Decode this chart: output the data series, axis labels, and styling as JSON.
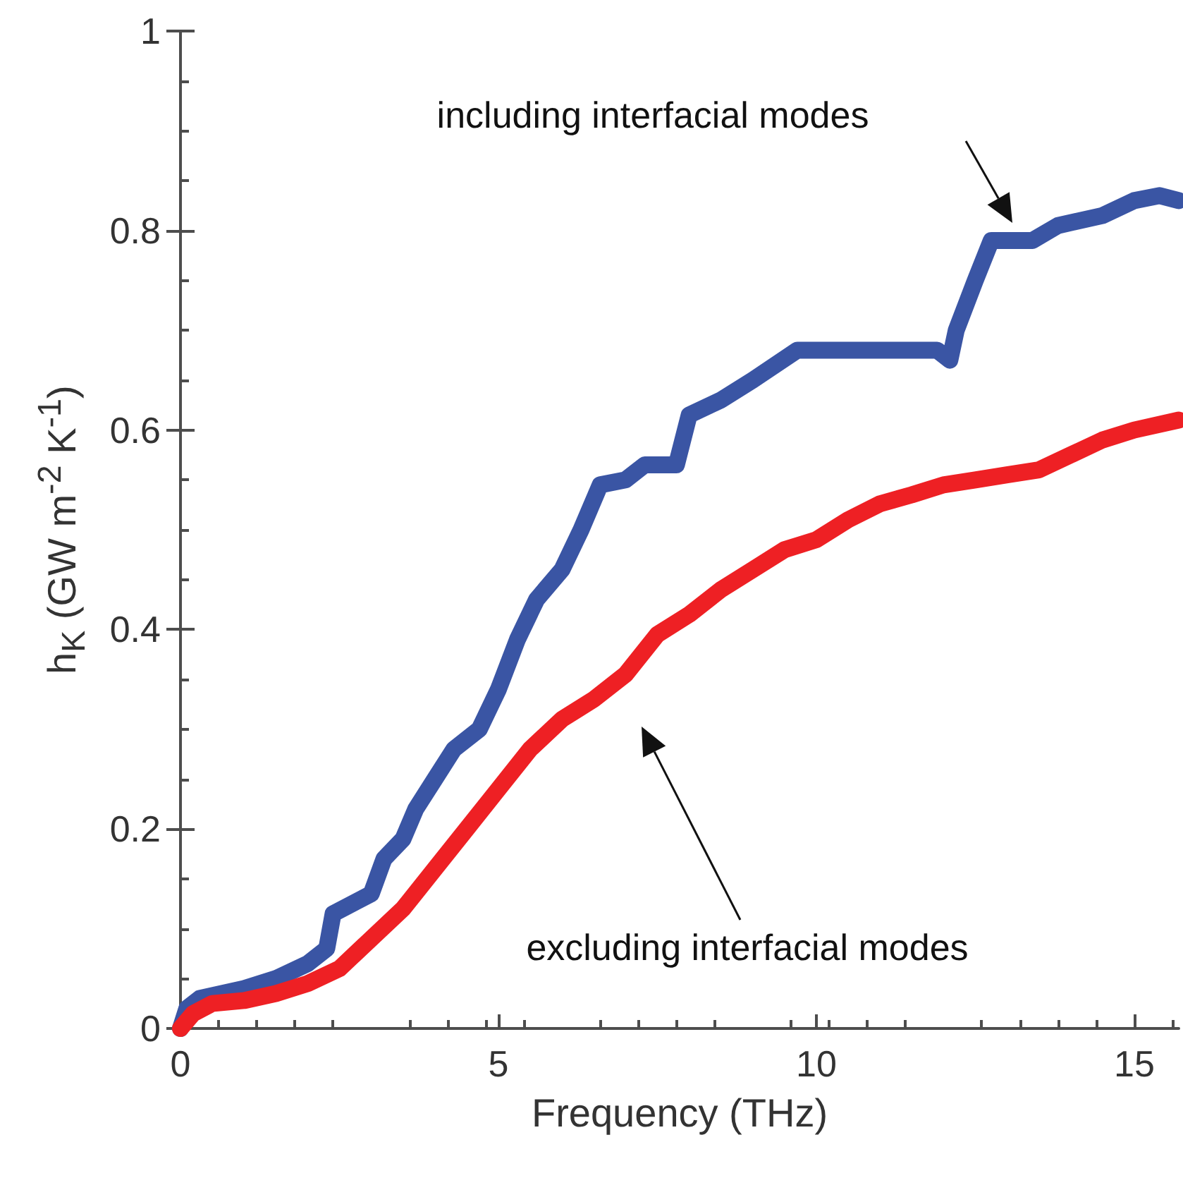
{
  "chart_data": {
    "type": "line",
    "xlabel": "Frequency (THz)",
    "ylabel": "h$_{K}$ (GW m$^{-2}$ K$^{-1}$)",
    "xlim": [
      0,
      15.7
    ],
    "xticks": [
      0,
      5,
      10,
      15
    ],
    "ylim": [
      0,
      1
    ],
    "yticks": [
      0,
      0.2,
      0.4,
      0.6,
      0.8,
      1
    ],
    "grid": false,
    "marker": "none",
    "line_style": "solid",
    "series": [
      {
        "color": "#3a55a4",
        "x": [
          0,
          0.1,
          0.3,
          1,
          1.5,
          2,
          2.3,
          2.4,
          3,
          3.2,
          3.5,
          3.7,
          4,
          4.3,
          4.7,
          5,
          5.3,
          5.6,
          6,
          6.3,
          6.6,
          7,
          7.3,
          7.8,
          8,
          8.5,
          9,
          9.7,
          10,
          11,
          11.9,
          12.1,
          12.2,
          12.5,
          12.75,
          13.4,
          13.8,
          14.5,
          15,
          15.4,
          15.7
        ],
        "values": [
          0,
          0.02,
          0.03,
          0.04,
          0.05,
          0.065,
          0.08,
          0.115,
          0.135,
          0.17,
          0.19,
          0.22,
          0.25,
          0.28,
          0.3,
          0.34,
          0.39,
          0.43,
          0.46,
          0.5,
          0.545,
          0.55,
          0.565,
          0.565,
          0.615,
          0.63,
          0.65,
          0.68,
          0.68,
          0.68,
          0.68,
          0.67,
          0.7,
          0.75,
          0.79,
          0.79,
          0.805,
          0.815,
          0.83,
          0.835,
          0.83
        ]
      },
      {
        "color": "#ee2024",
        "x": [
          0,
          0.2,
          0.5,
          1,
          1.5,
          2,
          2.5,
          3,
          3.5,
          4,
          4.5,
          5,
          5.5,
          6,
          6.5,
          7,
          7.5,
          8,
          8.5,
          9,
          9.5,
          10,
          10.5,
          11,
          11.5,
          12,
          12.5,
          13,
          13.5,
          14,
          14.5,
          15,
          15.7
        ],
        "values": [
          0,
          0.015,
          0.025,
          0.028,
          0.035,
          0.045,
          0.06,
          0.09,
          0.12,
          0.16,
          0.2,
          0.24,
          0.28,
          0.31,
          0.33,
          0.355,
          0.395,
          0.415,
          0.44,
          0.46,
          0.48,
          0.49,
          0.51,
          0.526,
          0.535,
          0.545,
          0.55,
          0.555,
          0.56,
          0.575,
          0.59,
          0.6,
          0.61
        ]
      }
    ],
    "annotations": [
      "including interfacial modes",
      "excluding interfacial modes"
    ]
  }
}
